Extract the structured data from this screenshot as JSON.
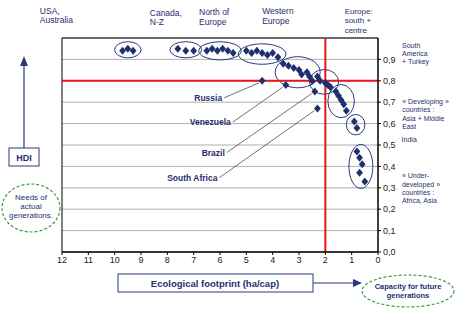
{
  "chart_data": {
    "type": "scatter",
    "x_label": "Ecological footprint (ha/cap)",
    "y_label": "HDI",
    "xlim": [
      12,
      0
    ],
    "xticks": [
      12,
      11,
      10,
      9,
      8,
      7,
      6,
      5,
      4,
      3,
      2,
      1,
      0
    ],
    "ylim": [
      0,
      1
    ],
    "yticks": [
      {
        "value": 0,
        "label": "0,0"
      },
      {
        "value": 0.1,
        "label": "0,1"
      },
      {
        "value": 0.2,
        "label": "0,2"
      },
      {
        "value": 0.3,
        "label": "0,3"
      },
      {
        "value": 0.4,
        "label": "0,4"
      },
      {
        "value": 0.5,
        "label": "0,5"
      },
      {
        "value": 0.6,
        "label": "0,6"
      },
      {
        "value": 0.7,
        "label": "0,7"
      },
      {
        "value": 0.8,
        "label": "0,8"
      },
      {
        "value": 0.9,
        "label": "0,9"
      }
    ],
    "grid": true,
    "color": "#1f2f6e",
    "marker": "diamond",
    "reference_lines": [
      {
        "axis": "x",
        "value": 2,
        "color": "#e8141b"
      },
      {
        "axis": "y",
        "value": 0.8,
        "color": "#e8141b"
      }
    ],
    "annotations": [
      {
        "text": "Needs of\nactual\ngenerations.",
        "color": "#3a9d3a"
      },
      {
        "text": "Capacity for future\ngenerations",
        "color": "#3a9d3a"
      }
    ],
    "series": [
      {
        "name": "USA,\nAustralia",
        "x": [
          9.7,
          9.5,
          9.3
        ],
        "values": [
          0.94,
          0.95,
          0.94
        ]
      },
      {
        "name": "Canada,\nN-Z",
        "x": [
          7.6,
          7.3,
          7.0
        ],
        "values": [
          0.95,
          0.94,
          0.94
        ]
      },
      {
        "name": "North of\nEurope",
        "x": [
          6.5,
          6.3,
          6.1,
          5.9,
          5.7,
          5.5
        ],
        "values": [
          0.94,
          0.95,
          0.94,
          0.95,
          0.94,
          0.93
        ]
      },
      {
        "name": "Western\nEurope",
        "x": [
          5.0,
          4.8,
          4.6,
          4.4,
          4.2,
          4.0,
          3.8
        ],
        "values": [
          0.94,
          0.93,
          0.94,
          0.93,
          0.92,
          0.93,
          0.91
        ]
      },
      {
        "name": "Europe:\nsouth +\ncentre",
        "x": [
          3.6,
          3.4,
          3.2,
          3.0,
          2.9,
          2.7,
          2.6,
          2.5
        ],
        "values": [
          0.88,
          0.87,
          0.86,
          0.85,
          0.83,
          0.84,
          0.82,
          0.8
        ]
      },
      {
        "name": "South\nAmerica\n+ Turkey",
        "x": [
          2.3,
          2.2,
          2.0,
          1.9,
          1.8
        ],
        "values": [
          0.82,
          0.8,
          0.79,
          0.78,
          0.77
        ]
      },
      {
        "name": "« Developing »\ncountries :\nAsia + Middle\nEast",
        "x": [
          1.6,
          1.5,
          1.4,
          1.3,
          1.2
        ],
        "values": [
          0.75,
          0.73,
          0.71,
          0.69,
          0.66
        ]
      },
      {
        "name": "India",
        "x": [
          0.9,
          0.8
        ],
        "values": [
          0.61,
          0.58
        ]
      },
      {
        "name": "« Under-\ndeveloped »\ncountries :\nAfrica, Asia",
        "x": [
          0.8,
          0.7,
          0.6,
          0.7,
          0.5
        ],
        "values": [
          0.47,
          0.44,
          0.41,
          0.37,
          0.33
        ]
      },
      {
        "name": "Russia",
        "x": [
          4.4
        ],
        "values": [
          0.8
        ]
      },
      {
        "name": "Venezuela",
        "x": [
          3.5
        ],
        "values": [
          0.78
        ]
      },
      {
        "name": "Brazil",
        "x": [
          2.4
        ],
        "values": [
          0.75
        ]
      },
      {
        "name": "South Africa",
        "x": [
          2.3
        ],
        "values": [
          0.67
        ]
      }
    ]
  }
}
